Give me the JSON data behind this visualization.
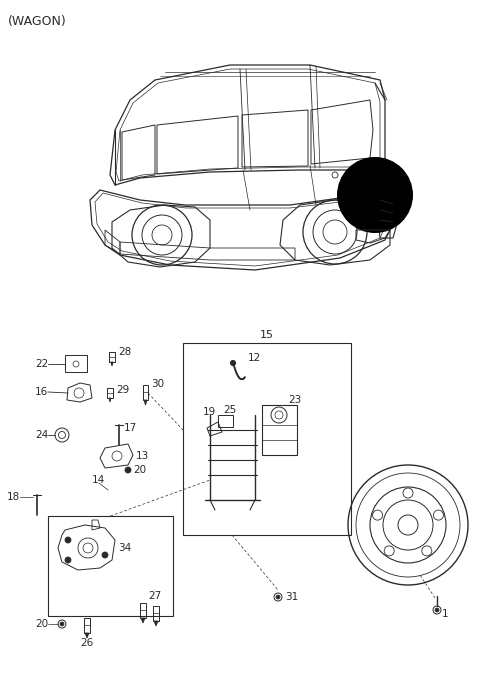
{
  "title": "(WAGON)",
  "bg_color": "#ffffff",
  "line_color": "#2a2a2a",
  "fig_width": 4.8,
  "fig_height": 6.75,
  "dpi": 100,
  "label_fontsize": 7.5,
  "title_fontsize": 9
}
